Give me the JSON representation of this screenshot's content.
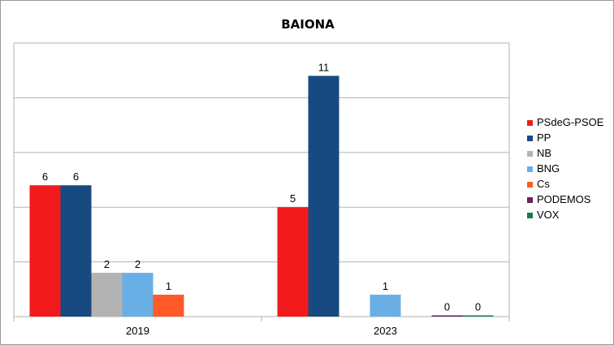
{
  "chart_data": {
    "type": "bar",
    "title": "BAIONA",
    "xlabel": "",
    "ylabel": "",
    "categories": [
      "2019",
      "2023"
    ],
    "ylim": [
      0,
      12.5
    ],
    "gridlines": true,
    "legend_position": "right",
    "series": [
      {
        "name": "PSdeG-PSOE",
        "color": "#f21a1a",
        "values": [
          6,
          5
        ]
      },
      {
        "name": "PP",
        "color": "#164a80",
        "values": [
          6,
          11
        ]
      },
      {
        "name": "NB",
        "color": "#b3b3b3",
        "values": [
          2,
          null
        ]
      },
      {
        "name": "BNG",
        "color": "#6aaee6",
        "values": [
          2,
          1
        ]
      },
      {
        "name": "Cs",
        "color": "#ff5a28",
        "values": [
          1,
          null
        ]
      },
      {
        "name": "PODEMOS",
        "color": "#6b1f5e",
        "values": [
          null,
          0
        ]
      },
      {
        "name": "VOX",
        "color": "#1a7a4a",
        "values": [
          null,
          0
        ]
      }
    ]
  }
}
